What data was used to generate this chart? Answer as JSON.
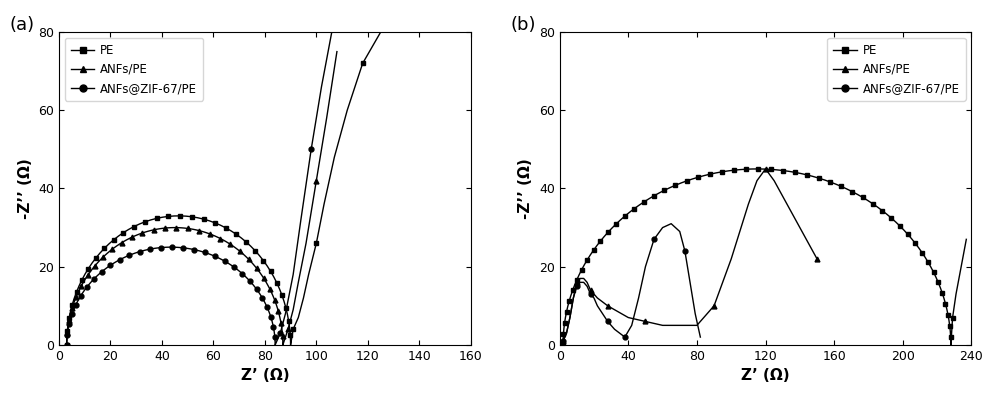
{
  "panel_a_label": "(a)",
  "panel_b_label": "(b)",
  "legend_labels": [
    "PE",
    "ANFs/PE",
    "ANFs@ZIF-67/PE"
  ],
  "xlabel": "Z’ (Ω)",
  "ylabel": "-Z’’ (Ω)",
  "panel_a": {
    "xlim": [
      0,
      160
    ],
    "ylim": [
      0,
      80
    ],
    "xticks": [
      0,
      20,
      40,
      60,
      80,
      100,
      120,
      140,
      160
    ],
    "yticks": [
      0,
      20,
      40,
      60,
      80
    ]
  },
  "panel_b": {
    "xlim": [
      0,
      240
    ],
    "ylim": [
      0,
      80
    ],
    "xticks": [
      0,
      40,
      80,
      120,
      160,
      200,
      240
    ],
    "yticks": [
      0,
      20,
      40,
      60,
      80
    ]
  }
}
